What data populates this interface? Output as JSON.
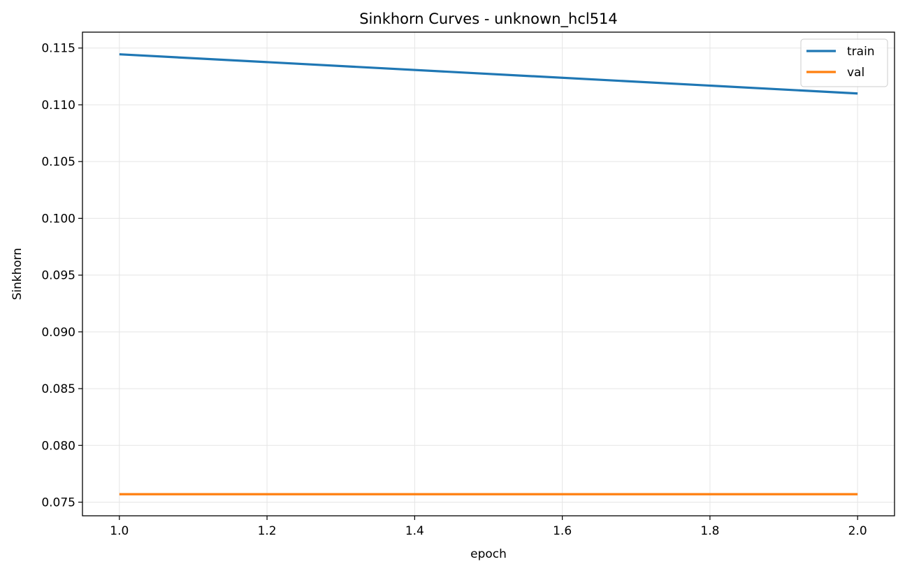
{
  "chart_data": {
    "type": "line",
    "title": "Sinkhorn Curves - unknown_hcl514",
    "xlabel": "epoch",
    "ylabel": "Sinkhorn",
    "xlim": [
      0.95,
      2.05
    ],
    "ylim": [
      0.0738,
      0.1164
    ],
    "xticks": [
      1.0,
      1.2,
      1.4,
      1.6,
      1.8,
      2.0
    ],
    "xtick_labels": [
      "1.0",
      "1.2",
      "1.4",
      "1.6",
      "1.8",
      "2.0"
    ],
    "yticks": [
      0.075,
      0.08,
      0.085,
      0.09,
      0.095,
      0.1,
      0.105,
      0.11,
      0.115
    ],
    "ytick_labels": [
      "0.075",
      "0.080",
      "0.085",
      "0.090",
      "0.095",
      "0.100",
      "0.105",
      "0.110",
      "0.115"
    ],
    "grid": true,
    "legend_position": "top-right",
    "series": [
      {
        "name": "train",
        "color": "#1f77b4",
        "x": [
          1.0,
          2.0
        ],
        "y": [
          0.11445,
          0.111
        ]
      },
      {
        "name": "val",
        "color": "#ff7f0e",
        "x": [
          1.0,
          2.0
        ],
        "y": [
          0.0757,
          0.0757
        ]
      }
    ]
  }
}
